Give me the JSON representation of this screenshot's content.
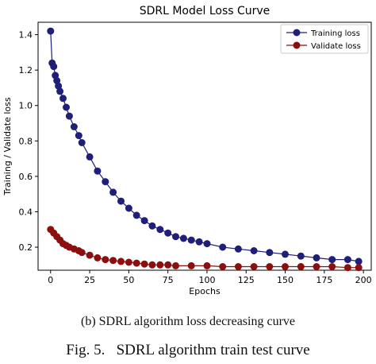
{
  "chart_data": {
    "type": "line",
    "title": "SDRL Model Loss Curve",
    "xlabel": "Epochs",
    "ylabel": "Training / Validate loss",
    "xlim": [
      -8,
      205
    ],
    "ylim": [
      0.07,
      1.47
    ],
    "xticks": [
      0,
      25,
      50,
      75,
      100,
      125,
      150,
      175,
      200
    ],
    "yticks": [
      0.2,
      0.4,
      0.6,
      0.8,
      1.0,
      1.2,
      1.4
    ],
    "ytick_labels": [
      "0.2",
      "0.4",
      "0.6",
      "0.8",
      "1.0",
      "1.2",
      "1.4"
    ],
    "grid": false,
    "legend_position": "top-right",
    "marker": "circle",
    "series": [
      {
        "name": "Training loss",
        "color": "#1f1f7a",
        "x": [
          0,
          1,
          2,
          3,
          4,
          5,
          6,
          8,
          10,
          12,
          15,
          18,
          20,
          25,
          30,
          35,
          40,
          45,
          50,
          55,
          60,
          65,
          70,
          75,
          80,
          85,
          90,
          95,
          100,
          110,
          120,
          130,
          140,
          150,
          160,
          170,
          180,
          190,
          197
        ],
        "y": [
          1.42,
          1.24,
          1.22,
          1.17,
          1.14,
          1.11,
          1.08,
          1.04,
          0.99,
          0.94,
          0.88,
          0.83,
          0.79,
          0.71,
          0.63,
          0.57,
          0.51,
          0.46,
          0.42,
          0.38,
          0.35,
          0.32,
          0.3,
          0.28,
          0.26,
          0.25,
          0.24,
          0.23,
          0.22,
          0.2,
          0.19,
          0.18,
          0.17,
          0.16,
          0.15,
          0.14,
          0.13,
          0.13,
          0.12
        ]
      },
      {
        "name": "Validate loss",
        "color": "#8b0f0f",
        "x": [
          0,
          2,
          4,
          6,
          8,
          10,
          12,
          15,
          18,
          20,
          25,
          30,
          35,
          40,
          45,
          50,
          55,
          60,
          65,
          70,
          75,
          80,
          90,
          100,
          110,
          120,
          130,
          140,
          150,
          160,
          170,
          180,
          190,
          197
        ],
        "y": [
          0.3,
          0.28,
          0.26,
          0.24,
          0.22,
          0.21,
          0.2,
          0.19,
          0.18,
          0.17,
          0.155,
          0.14,
          0.13,
          0.125,
          0.12,
          0.115,
          0.11,
          0.105,
          0.1,
          0.1,
          0.1,
          0.095,
          0.095,
          0.095,
          0.09,
          0.09,
          0.09,
          0.09,
          0.09,
          0.09,
          0.09,
          0.09,
          0.085,
          0.085
        ]
      }
    ]
  },
  "captions": {
    "subfigure": "(b) SDRL algorithm loss decreasing curve",
    "figure": "Fig. 5.   SDRL algorithm train test curve"
  }
}
